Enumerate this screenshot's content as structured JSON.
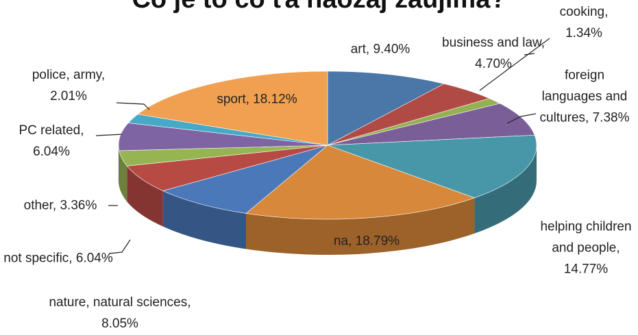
{
  "chart_data": {
    "type": "pie",
    "title": "Čo je to čo ťa naozaj zaujíma?",
    "categories": [
      "art",
      "business and law",
      "cooking",
      "foreign languages and cultures",
      "helping children and people",
      "na",
      "nature, natural sciences",
      "not specific",
      "other",
      "PC related",
      "police, army",
      "sport"
    ],
    "values": [
      9.4,
      4.7,
      1.34,
      7.38,
      14.77,
      18.79,
      8.05,
      6.04,
      3.36,
      6.04,
      2.01,
      18.12
    ],
    "value_labels": [
      "9.40%",
      "4.70%",
      "1.34%",
      "7.38%",
      "14.77%",
      "18.79%",
      "8.05%",
      "6.04%",
      "3.36%",
      "6.04%",
      "2.01%",
      "18.12%"
    ],
    "colors": [
      "#4a76a8",
      "#b04a45",
      "#94b050",
      "#7a5e98",
      "#4897a8",
      "#d8883a",
      "#4a78b8",
      "#b84a44",
      "#96b552",
      "#7f64a3",
      "#46a9c7",
      "#f0a050"
    ]
  }
}
